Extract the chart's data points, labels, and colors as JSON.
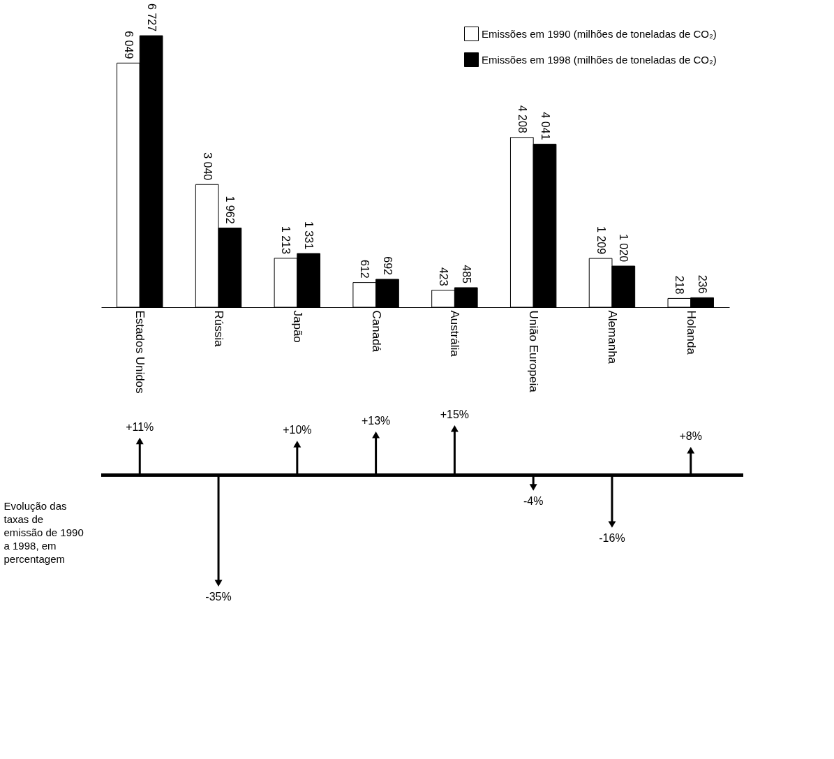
{
  "chart_data": [
    {
      "type": "bar",
      "categories": [
        "Estados Unidos",
        "Rússia",
        "Japão",
        "Canadá",
        "Austrália",
        "União Europeia",
        "Alemanha",
        "Holanda"
      ],
      "series": [
        {
          "name": "Emissões em 1990 (milhões de toneladas de CO₂)",
          "color": "#ffffff",
          "values": [
            6049,
            3040,
            1213,
            612,
            423,
            4208,
            1209,
            218
          ],
          "value_labels": [
            "6 049",
            "3 040",
            "1 213",
            "612",
            "423",
            "4 208",
            "1 209",
            "218"
          ]
        },
        {
          "name": "Emissões em 1998 (milhões de toneladas de CO₂)",
          "color": "#000000",
          "values": [
            6727,
            1962,
            1331,
            692,
            485,
            4041,
            1020,
            236
          ],
          "value_labels": [
            "6 727",
            "1 962",
            "1 331",
            "692",
            "485",
            "4 041",
            "1 020",
            "236"
          ]
        }
      ],
      "legend": "top right"
    },
    {
      "type": "lollipop",
      "marker": "triangle",
      "ylabel": "Evolução das taxas de emissão de 1990 a 1998, em percentagem",
      "categories": [
        null,
        null,
        null,
        null,
        null,
        null,
        null,
        null
      ],
      "values": [
        11,
        -35,
        10,
        13,
        15,
        -4,
        -16,
        8
      ],
      "value_labels": [
        "+11%",
        "-35%",
        "+10%",
        "+13%",
        "+15%",
        "-4%",
        "-16%",
        "+8%"
      ],
      "color": "#000000",
      "tick_labels": false
    }
  ]
}
